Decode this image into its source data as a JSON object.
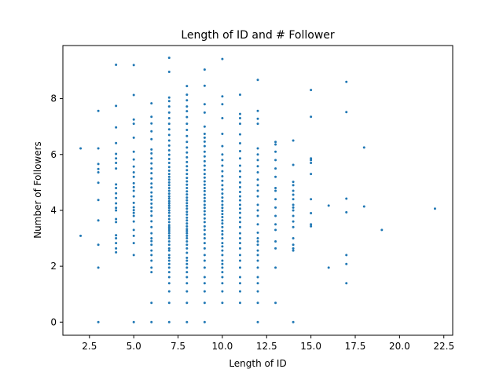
{
  "chart_data": {
    "type": "scatter",
    "title": "Length of ID and # Follower",
    "xlabel": "Length of ID",
    "ylabel": "Number of Followers",
    "xlim": [
      1.0,
      23.0
    ],
    "ylim": [
      -0.47,
      9.9
    ],
    "x_ticks": [
      2.5,
      5.0,
      7.5,
      10.0,
      12.5,
      15.0,
      17.5,
      20.0,
      22.5
    ],
    "x_tick_labels": [
      "2.5",
      "5.0",
      "7.5",
      "10.0",
      "12.5",
      "15.0",
      "17.5",
      "20.0",
      "22.5"
    ],
    "y_ticks": [
      0,
      2,
      4,
      6,
      8
    ],
    "y_tick_labels": [
      "0",
      "2",
      "4",
      "6",
      "8"
    ],
    "grid": false,
    "marker_color": "#1f77b4",
    "series": [
      {
        "columns": [
          {
            "x": 2,
            "y": [
              3.09,
              6.22
            ]
          },
          {
            "x": 3,
            "y": [
              0.0,
              1.95,
              2.77,
              3.64,
              4.37,
              4.99,
              5.36,
              5.48,
              5.66,
              6.22,
              7.56
            ]
          },
          {
            "x": 4,
            "y": [
              2.5,
              2.64,
              2.83,
              3.0,
              3.11,
              3.58,
              3.69,
              4.0,
              4.09,
              4.25,
              4.44,
              4.61,
              4.8,
              4.93,
              5.5,
              5.7,
              5.86,
              6.02,
              6.41,
              6.97,
              7.74,
              9.21
            ]
          },
          {
            "x": 5,
            "y": [
              0.0,
              2.4,
              2.83,
              3.09,
              3.3,
              3.6,
              3.8,
              3.91,
              4.01,
              4.11,
              4.27,
              4.5,
              4.7,
              4.83,
              4.97,
              5.2,
              5.36,
              5.57,
              5.82,
              6.1,
              6.6,
              7.1,
              7.25,
              8.13,
              9.2
            ]
          },
          {
            "x": 6,
            "y": [
              0.0,
              0.69,
              1.79,
              1.95,
              2.2,
              2.4,
              2.56,
              2.77,
              2.9,
              3.0,
              3.18,
              3.4,
              3.61,
              3.81,
              3.97,
              4.1,
              4.24,
              4.38,
              4.5,
              4.64,
              4.82,
              4.96,
              5.14,
              5.33,
              5.5,
              5.68,
              5.86,
              6.04,
              6.18,
              6.55,
              6.83,
              7.11,
              7.35,
              7.83
            ]
          },
          {
            "x": 7,
            "y": [
              0.0,
              0.69,
              1.1,
              1.39,
              1.61,
              1.79,
              1.95,
              2.08,
              2.2,
              2.3,
              2.4,
              2.56,
              2.64,
              2.77,
              2.89,
              3.0,
              3.09,
              3.18,
              3.26,
              3.33,
              3.4,
              3.47,
              3.58,
              3.69,
              3.8,
              3.91,
              4.0,
              4.09,
              4.17,
              4.25,
              4.33,
              4.42,
              4.5,
              4.6,
              4.7,
              4.8,
              4.9,
              5.0,
              5.1,
              5.2,
              5.3,
              5.42,
              5.55,
              5.7,
              5.84,
              5.99,
              6.15,
              6.32,
              6.5,
              6.7,
              6.9,
              7.1,
              7.3,
              7.5,
              7.72,
              7.91,
              8.04,
              8.96,
              9.46
            ]
          },
          {
            "x": 8,
            "y": [
              0.0,
              0.69,
              1.1,
              1.39,
              1.61,
              1.79,
              1.95,
              2.08,
              2.2,
              2.3,
              2.48,
              2.64,
              2.77,
              2.89,
              3.0,
              3.09,
              3.18,
              3.26,
              3.33,
              3.43,
              3.53,
              3.64,
              3.74,
              3.85,
              3.95,
              4.06,
              4.16,
              4.26,
              4.36,
              4.46,
              4.57,
              4.68,
              4.8,
              4.92,
              5.04,
              5.16,
              5.3,
              5.44,
              5.58,
              5.73,
              5.9,
              6.07,
              6.25,
              6.45,
              6.66,
              6.88,
              7.1,
              7.34,
              7.55,
              7.72,
              7.94,
              8.14,
              8.45
            ]
          },
          {
            "x": 9,
            "y": [
              0.0,
              0.69,
              1.1,
              1.39,
              1.61,
              1.95,
              2.2,
              2.4,
              2.64,
              2.83,
              3.0,
              3.14,
              3.3,
              3.43,
              3.58,
              3.71,
              3.85,
              3.97,
              4.09,
              4.2,
              4.33,
              4.44,
              4.56,
              4.69,
              4.8,
              4.92,
              5.04,
              5.17,
              5.3,
              5.45,
              5.6,
              5.76,
              5.93,
              6.1,
              6.3,
              6.46,
              6.6,
              6.74,
              7.0,
              7.5,
              7.8,
              8.46,
              9.04
            ]
          },
          {
            "x": 10,
            "y": [
              0.69,
              1.1,
              1.39,
              1.61,
              1.79,
              1.95,
              2.08,
              2.2,
              2.4,
              2.56,
              2.71,
              2.83,
              3.0,
              3.14,
              3.26,
              3.4,
              3.53,
              3.64,
              3.76,
              3.87,
              3.98,
              4.09,
              4.2,
              4.33,
              4.46,
              4.6,
              4.75,
              4.9,
              5.06,
              5.22,
              5.4,
              5.6,
              5.8,
              6.0,
              6.3,
              6.74,
              7.3,
              7.8,
              8.08,
              9.42
            ]
          },
          {
            "x": 11,
            "y": [
              0.69,
              1.1,
              1.39,
              1.61,
              1.95,
              2.2,
              2.4,
              2.64,
              2.83,
              3.0,
              3.18,
              3.4,
              3.58,
              3.74,
              3.91,
              4.06,
              4.2,
              4.36,
              4.5,
              4.66,
              4.83,
              5.0,
              5.2,
              5.4,
              5.6,
              5.86,
              6.12,
              6.4,
              6.72,
              7.1,
              7.3,
              7.45,
              8.14
            ]
          },
          {
            "x": 12,
            "y": [
              0.0,
              0.69,
              1.1,
              1.39,
              1.61,
              1.95,
              2.2,
              2.4,
              2.56,
              2.77,
              2.89,
              3.0,
              3.2,
              3.5,
              3.8,
              4.0,
              4.2,
              4.5,
              4.7,
              4.9,
              5.1,
              5.36,
              5.58,
              5.8,
              6.0,
              6.22,
              7.1,
              7.28,
              7.56,
              8.67
            ]
          },
          {
            "x": 13,
            "y": [
              0.69,
              1.95,
              2.64,
              2.89,
              3.3,
              3.5,
              3.8,
              4.1,
              4.4,
              4.7,
              4.8,
              5.2,
              5.5,
              5.8,
              6.1,
              6.36,
              6.45
            ]
          },
          {
            "x": 14,
            "y": [
              0.0,
              2.56,
              2.64,
              2.77,
              3.0,
              3.4,
              3.6,
              3.8,
              4.0,
              4.1,
              4.2,
              4.4,
              4.56,
              4.7,
              4.9,
              5.02,
              5.63,
              6.5
            ]
          },
          {
            "x": 15,
            "y": [
              3.43,
              3.5,
              3.9,
              4.4,
              5.3,
              5.7,
              5.8,
              5.86,
              7.35,
              8.31
            ]
          },
          {
            "x": 16,
            "y": [
              1.95,
              4.17
            ]
          },
          {
            "x": 17,
            "y": [
              1.39,
              2.08,
              2.4,
              3.93,
              4.42,
              7.52,
              8.6
            ]
          },
          {
            "x": 18,
            "y": [
              4.14,
              6.25
            ]
          },
          {
            "x": 19,
            "y": [
              3.3
            ]
          },
          {
            "x": 22,
            "y": [
              4.06
            ]
          }
        ]
      }
    ]
  }
}
